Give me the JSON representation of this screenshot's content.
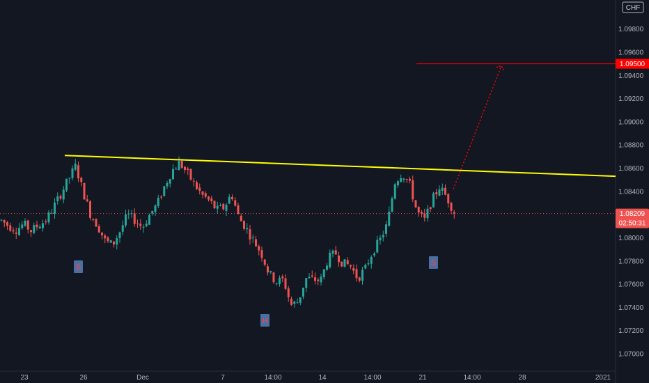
{
  "chart_data": {
    "type": "candlestick",
    "currency": "CHF",
    "y_axis": {
      "ticks": [
        "1.09800",
        "1.09600",
        "1.09400",
        "1.09200",
        "1.09000",
        "1.08800",
        "1.08600",
        "1.08400",
        "1.08000",
        "1.07800",
        "1.07600",
        "1.07400",
        "1.07200",
        "1.07000"
      ],
      "range": [
        1.0685,
        1.1005
      ]
    },
    "x_axis": {
      "ticks": [
        "23",
        "26",
        "Dec",
        "7",
        "14:00",
        "14",
        "14:00",
        "21",
        "14:00",
        "28",
        "2021"
      ]
    },
    "current_price": {
      "value": 1.08209,
      "label": "1.08209",
      "countdown": "02:50:31",
      "color": "#ef5350"
    },
    "target_level": {
      "value": 1.095,
      "label": "1.09500",
      "color": "#ff0000"
    },
    "neckline": {
      "color": "#ffff00",
      "start": 1.0871,
      "end": 1.0853
    },
    "projection_target": 1.095,
    "pattern_labels": [
      {
        "text": "S"
      },
      {
        "text": "H"
      },
      {
        "text": "S"
      }
    ],
    "colors": {
      "up": "#26a69a",
      "down": "#ef5350",
      "background": "#131722"
    },
    "anchor_prices": [
      1.0815,
      1.081,
      1.0807,
      1.0812,
      1.0806,
      1.0811,
      1.0815,
      1.0826,
      1.0838,
      1.085,
      1.0862,
      1.084,
      1.082,
      1.081,
      1.0797,
      1.0794,
      1.0806,
      1.082,
      1.0815,
      1.0809,
      1.082,
      1.0829,
      1.0845,
      1.0858,
      1.0865,
      1.0856,
      1.0846,
      1.0837,
      1.0832,
      1.0824,
      1.0826,
      1.0838,
      1.0817,
      1.0808,
      1.0797,
      1.0787,
      1.077,
      1.0762,
      1.0764,
      1.0742,
      1.0745,
      1.0765,
      1.0764,
      1.0763,
      1.0782,
      1.0787,
      1.0778,
      1.0776,
      1.0765,
      1.0773,
      1.0788,
      1.0798,
      1.0812,
      1.0848,
      1.0856,
      1.0846,
      1.0822,
      1.0815,
      1.0832,
      1.0844,
      1.0835,
      1.0822
    ]
  }
}
